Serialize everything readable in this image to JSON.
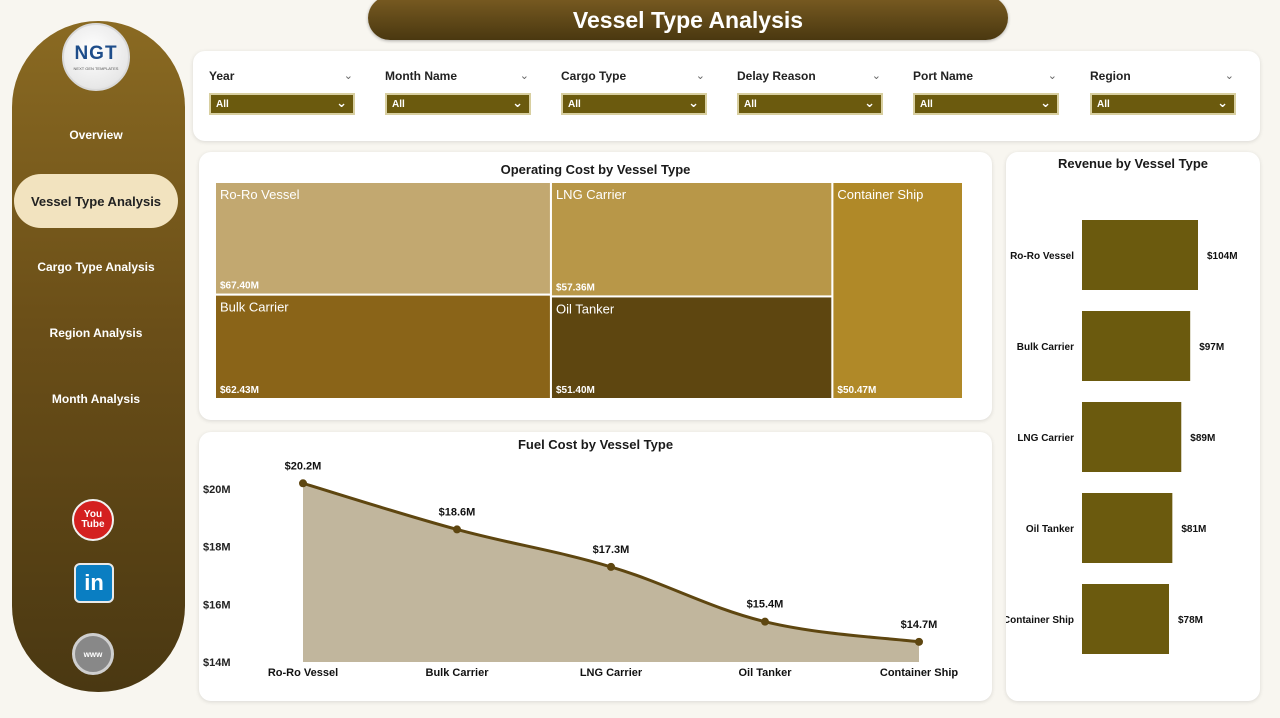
{
  "header": {
    "title": "Vessel Type Analysis"
  },
  "sidebar": {
    "logo": {
      "text": "NGT",
      "subtext": "NEXT GEN TEMPLATES"
    },
    "items": [
      {
        "label": "Overview",
        "active": false
      },
      {
        "label": "Vessel Type Analysis",
        "active": true
      },
      {
        "label": "Cargo Type Analysis",
        "active": false
      },
      {
        "label": "Region Analysis",
        "active": false
      },
      {
        "label": "Month Analysis",
        "active": false
      }
    ],
    "social": {
      "youtube": "You Tube",
      "linkedin": "in",
      "web": "www"
    }
  },
  "filters": [
    {
      "label": "Year",
      "value": "All"
    },
    {
      "label": "Month Name",
      "value": "All"
    },
    {
      "label": "Cargo Type",
      "value": "All"
    },
    {
      "label": "Delay Reason",
      "value": "All"
    },
    {
      "label": "Port Name",
      "value": "All"
    },
    {
      "label": "Region",
      "value": "All"
    }
  ],
  "colors": {
    "accent": "#6b5a0e",
    "sidebar": "#6b4f18",
    "active_nav": "#f2e3bf"
  },
  "chart_data": [
    {
      "type": "treemap",
      "title": "Operating Cost by Vessel Type",
      "items": [
        {
          "name": "Ro-Ro Vessel",
          "value": 67.4,
          "label": "$67.40M",
          "color": "#c2a870"
        },
        {
          "name": "LNG Carrier",
          "value": 57.36,
          "label": "$57.36M",
          "color": "#b89748"
        },
        {
          "name": "Container Ship",
          "value": 50.47,
          "label": "$50.47M",
          "color": "#b08928"
        },
        {
          "name": "Bulk Carrier",
          "value": 62.43,
          "label": "$62.43M",
          "color": "#8a6418"
        },
        {
          "name": "Oil Tanker",
          "value": 51.4,
          "label": "$51.40M",
          "color": "#5e4610"
        }
      ]
    },
    {
      "type": "area",
      "title": "Fuel Cost by Vessel Type",
      "categories": [
        "Ro-Ro Vessel",
        "Bulk Carrier",
        "LNG Carrier",
        "Oil Tanker",
        "Container Ship"
      ],
      "values": [
        20.2,
        18.6,
        17.3,
        15.4,
        14.7
      ],
      "data_labels": [
        "$20.2M",
        "$18.6M",
        "$17.3M",
        "$15.4M",
        "$14.7M"
      ],
      "yticks": [
        14,
        16,
        18,
        20
      ],
      "ytick_labels": [
        "$14M",
        "$16M",
        "$18M",
        "$20M"
      ],
      "ylim": [
        14,
        20.8
      ],
      "line_color": "#5e4610",
      "fill_color": "#c1b69d"
    },
    {
      "type": "bar",
      "orientation": "horizontal",
      "title": "Revenue by Vessel Type",
      "categories": [
        "Ro-Ro Vessel",
        "Bulk Carrier",
        "LNG Carrier",
        "Oil Tanker",
        "Container Ship"
      ],
      "values": [
        104,
        97,
        89,
        81,
        78
      ],
      "data_labels": [
        "$104M",
        "$97M",
        "$89M",
        "$81M",
        "$78M"
      ],
      "bar_color": "#6b5a0e"
    }
  ]
}
